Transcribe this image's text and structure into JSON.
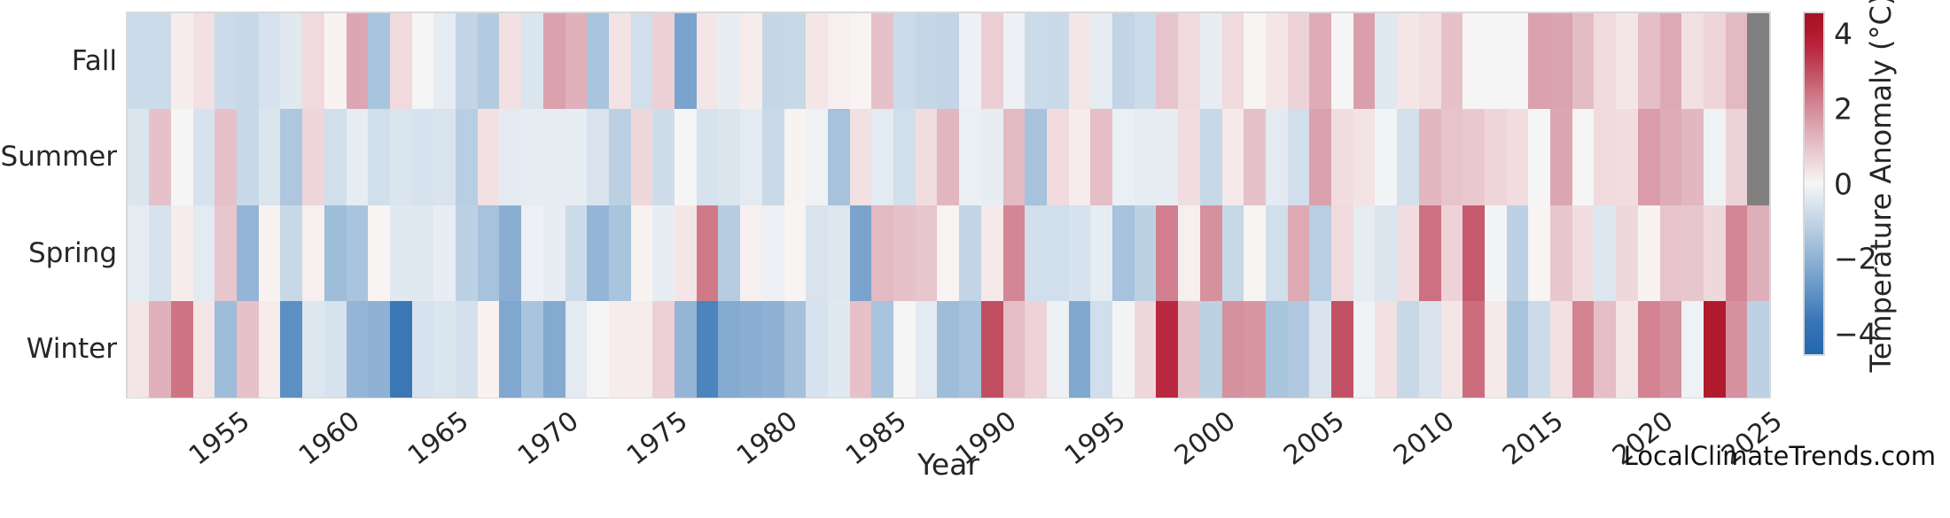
{
  "watermark": "LocalClimateTrends.com",
  "chart_data": {
    "type": "heatmap",
    "xlabel": "Year",
    "ylabel": "",
    "colorbar_label": "Temperature Anomaly (°C)",
    "colorbar_ticks": [
      4,
      2,
      0,
      -2,
      -4
    ],
    "vmin": -4.55,
    "vmax": 4.55,
    "x_tick_years": [
      1955,
      1960,
      1965,
      1970,
      1975,
      1980,
      1985,
      1990,
      1995,
      2000,
      2005,
      2010,
      2015,
      2020,
      2025
    ],
    "rows": [
      "Fall",
      "Summer",
      "Spring",
      "Winter"
    ],
    "years_start": 1950,
    "years_end": 2024,
    "missing_color": "#808080",
    "colormap_anchors": [
      [
        -4.6,
        "#2166ac"
      ],
      [
        -3.6,
        "#3c77b5"
      ],
      [
        -3.0,
        "#5b90c4"
      ],
      [
        -2.2,
        "#84aad0"
      ],
      [
        -1.5,
        "#a9c4dd"
      ],
      [
        -0.8,
        "#ccdbe9"
      ],
      [
        -0.35,
        "#e3eaf1"
      ],
      [
        -0.1,
        "#eff2f5"
      ],
      [
        0.0,
        "#f6f5f5"
      ],
      [
        0.1,
        "#f8f2f1"
      ],
      [
        0.5,
        "#f0dadd"
      ],
      [
        1.0,
        "#e6c1c9"
      ],
      [
        1.5,
        "#dca7b2"
      ],
      [
        2.2,
        "#d2808f"
      ],
      [
        3.0,
        "#c24e62"
      ],
      [
        3.6,
        "#b92841"
      ],
      [
        4.0,
        "#b11a2c"
      ],
      [
        4.6,
        "#a50f26"
      ]
    ],
    "series": [
      {
        "name": "Fall",
        "values": [
          -0.8,
          -0.8,
          0.2,
          0.4,
          -0.8,
          -0.9,
          -0.6,
          -0.4,
          0.5,
          0.1,
          1.5,
          -1.5,
          0.5,
          0.0,
          -0.3,
          -1.0,
          -1.3,
          0.4,
          -0.5,
          1.6,
          1.3,
          -1.5,
          0.35,
          -0.7,
          0.7,
          -2.4,
          0.3,
          -0.25,
          0.2,
          -0.95,
          -0.9,
          0.3,
          0.15,
          0.05,
          1.0,
          -0.8,
          -0.95,
          -1.0,
          -0.15,
          0.75,
          -0.15,
          -0.8,
          -0.85,
          0.3,
          -0.3,
          -1.0,
          -0.8,
          0.95,
          0.5,
          -0.25,
          0.5,
          0.05,
          0.3,
          0.65,
          1.4,
          0.0,
          1.65,
          -0.4,
          0.3,
          0.4,
          1.0,
          0.0,
          0.0,
          0.0,
          1.6,
          1.55,
          1.1,
          0.5,
          0.3,
          1.05,
          1.45,
          0.4,
          0.6,
          1.15,
          null
        ]
      },
      {
        "name": "Summer",
        "values": [
          -0.5,
          1.0,
          0.0,
          -0.6,
          1.0,
          -0.9,
          -0.5,
          -1.4,
          0.6,
          -0.7,
          -0.3,
          -0.7,
          -0.5,
          -0.6,
          -0.55,
          -1.2,
          0.4,
          -0.35,
          -0.3,
          -0.3,
          -0.3,
          -0.55,
          -1.15,
          0.55,
          -0.75,
          0.0,
          -0.6,
          -0.5,
          -0.35,
          -0.85,
          0.1,
          -0.1,
          -1.55,
          0.4,
          -0.35,
          -0.7,
          0.45,
          1.2,
          -0.2,
          -0.25,
          1.15,
          -1.55,
          0.5,
          0.2,
          1.05,
          -0.2,
          -0.3,
          -0.25,
          0.45,
          -0.9,
          0.25,
          1.0,
          -0.35,
          -0.7,
          1.6,
          0.45,
          0.35,
          -0.05,
          -0.65,
          1.2,
          0.95,
          0.85,
          0.6,
          0.45,
          0.0,
          1.5,
          0.0,
          0.5,
          0.45,
          1.7,
          1.4,
          1.2,
          -0.1,
          0.65,
          null
        ]
      },
      {
        "name": "Spring",
        "values": [
          -0.3,
          -0.6,
          0.2,
          -0.35,
          0.9,
          -1.9,
          0.1,
          -0.9,
          0.15,
          -1.7,
          -1.5,
          0.05,
          -0.4,
          -0.4,
          -0.25,
          -1.1,
          -1.55,
          -2.1,
          -0.15,
          -0.25,
          -0.8,
          -1.9,
          -1.5,
          0.1,
          -0.25,
          0.3,
          2.3,
          -1.25,
          0.15,
          -0.15,
          0.05,
          -0.55,
          -0.45,
          -2.4,
          1.15,
          1.0,
          0.9,
          0.05,
          -1.0,
          0.25,
          2.1,
          -0.7,
          -0.7,
          -0.6,
          -0.3,
          -1.55,
          -1.1,
          2.2,
          0.15,
          1.9,
          -0.9,
          0.05,
          -0.7,
          1.45,
          -1.2,
          0.5,
          -0.3,
          -0.5,
          0.45,
          2.45,
          0.65,
          2.8,
          -0.05,
          -1.1,
          0.05,
          0.9,
          0.45,
          -0.45,
          0.55,
          0.1,
          0.95,
          0.9,
          0.55,
          2.1,
          1.35
        ]
      },
      {
        "name": "Winter",
        "values": [
          0.3,
          1.3,
          2.4,
          0.3,
          -1.7,
          1.0,
          0.2,
          -3.0,
          -0.45,
          -0.6,
          -1.9,
          -2.0,
          -3.6,
          -0.6,
          -0.5,
          -0.65,
          0.1,
          -2.3,
          -1.5,
          -2.2,
          -0.35,
          0.0,
          0.2,
          0.2,
          0.7,
          -1.9,
          -3.3,
          -2.2,
          -2.1,
          -2.0,
          -1.6,
          -0.6,
          -0.4,
          1.0,
          -1.5,
          0.0,
          -0.35,
          -1.7,
          -1.55,
          3.0,
          1.05,
          0.65,
          -0.15,
          -2.25,
          -0.7,
          -0.05,
          0.55,
          3.6,
          1.0,
          -1.1,
          1.9,
          1.8,
          -1.5,
          -1.35,
          -0.55,
          2.95,
          -0.1,
          0.4,
          -0.9,
          -0.55,
          0.3,
          2.5,
          0.25,
          -1.5,
          -0.8,
          0.4,
          2.15,
          1.05,
          0.3,
          2.15,
          1.9,
          -0.1,
          4.0,
          1.9,
          -1.1
        ]
      }
    ]
  }
}
